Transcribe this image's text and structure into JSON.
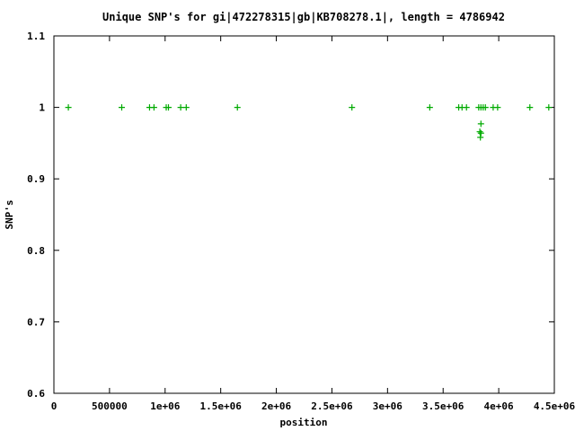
{
  "chart_data": {
    "type": "scatter",
    "title": "Unique SNP's for gi|472278315|gb|KB708278.1|, length = 4786942",
    "xlabel": "position",
    "ylabel": "SNP's",
    "xlim": [
      0,
      4500000
    ],
    "ylim": [
      0.6,
      1.1
    ],
    "x_ticks": [
      0,
      500000,
      1000000,
      1500000,
      2000000,
      2500000,
      3000000,
      3500000,
      4000000,
      4500000
    ],
    "x_tick_labels": [
      "0",
      "500000",
      "1e+06",
      "1.5e+06",
      "2e+06",
      "2.5e+06",
      "3e+06",
      "3.5e+06",
      "4e+06",
      "4.5e+06"
    ],
    "y_ticks": [
      0.6,
      0.7,
      0.8,
      0.9,
      1.0,
      1.1
    ],
    "y_tick_labels": [
      "0.6",
      "0.7",
      "0.8",
      "0.9",
      "1",
      "1.1"
    ],
    "marker": "+",
    "color": "#00aa00",
    "grid": false,
    "legend": "none",
    "points": [
      {
        "x": 130000,
        "y": 1.0
      },
      {
        "x": 610000,
        "y": 1.0
      },
      {
        "x": 860000,
        "y": 1.0
      },
      {
        "x": 900000,
        "y": 1.0
      },
      {
        "x": 1010000,
        "y": 1.0
      },
      {
        "x": 1030000,
        "y": 1.0
      },
      {
        "x": 1140000,
        "y": 1.0
      },
      {
        "x": 1190000,
        "y": 1.0
      },
      {
        "x": 1650000,
        "y": 1.0
      },
      {
        "x": 2680000,
        "y": 1.0
      },
      {
        "x": 3380000,
        "y": 1.0
      },
      {
        "x": 3640000,
        "y": 1.0
      },
      {
        "x": 3670000,
        "y": 1.0
      },
      {
        "x": 3710000,
        "y": 1.0
      },
      {
        "x": 3820000,
        "y": 1.0
      },
      {
        "x": 3840000,
        "y": 1.0
      },
      {
        "x": 3860000,
        "y": 1.0
      },
      {
        "x": 3880000,
        "y": 1.0
      },
      {
        "x": 3950000,
        "y": 1.0
      },
      {
        "x": 3990000,
        "y": 1.0
      },
      {
        "x": 4280000,
        "y": 1.0
      },
      {
        "x": 4450000,
        "y": 1.0
      },
      {
        "x": 3840000,
        "y": 0.977
      },
      {
        "x": 3830000,
        "y": 0.966
      },
      {
        "x": 3840000,
        "y": 0.964
      },
      {
        "x": 3835000,
        "y": 0.958
      }
    ]
  }
}
